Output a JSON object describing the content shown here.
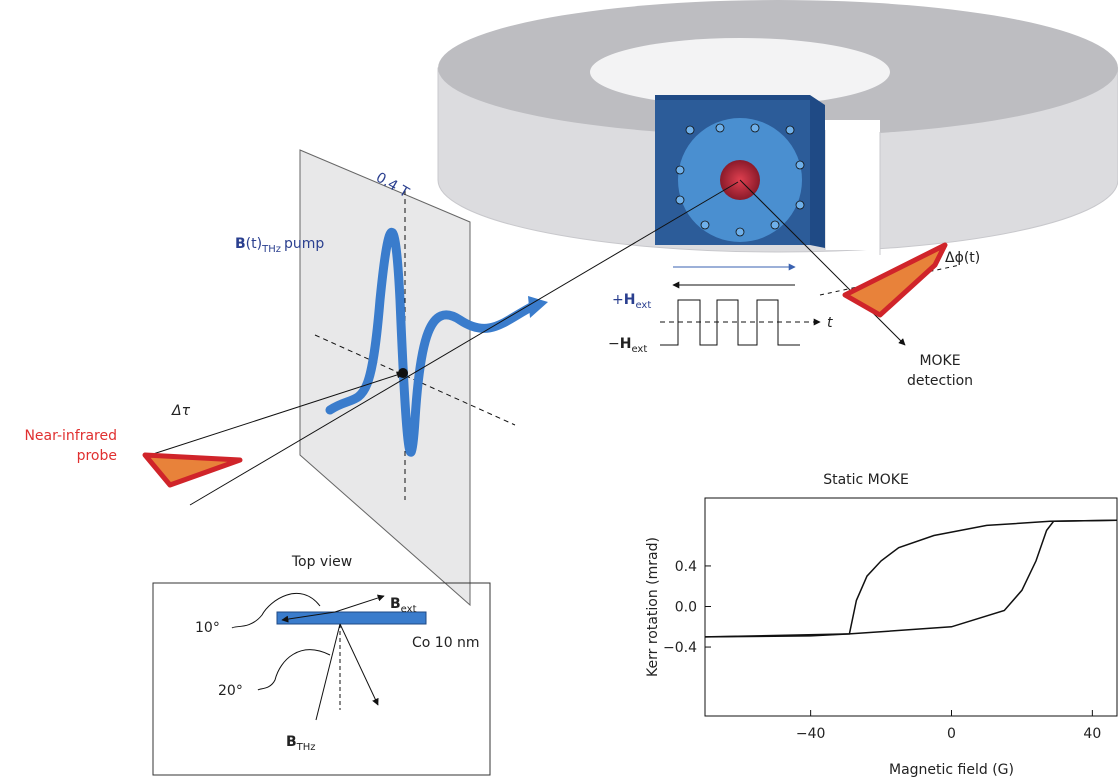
{
  "diagram": {
    "field_label": "0.4 T",
    "pump_label": {
      "symbol": "B",
      "arg": "(t)",
      "sub": "THz",
      "rest": "pump"
    },
    "delay_label": "Δτ",
    "probe_label": [
      "Near-infrared",
      "probe"
    ],
    "h_plus": {
      "sign": "+",
      "symbol": "H",
      "sub": "ext"
    },
    "h_minus": {
      "sign": "−",
      "symbol": "H",
      "sub": "ext"
    },
    "time_label": "t",
    "phase_label": "Δϕ(t)",
    "detection_label": [
      "MOKE",
      "detection"
    ]
  },
  "top_view": {
    "title": "Top view",
    "b_ext": {
      "symbol": "B",
      "sub": "ext"
    },
    "angle_1": "10°",
    "layer": "Co 10 nm",
    "angle_2": "20°",
    "b_thz": {
      "symbol": "B",
      "sub": "THz"
    }
  },
  "chart_data": {
    "type": "line",
    "title": "Static MOKE",
    "x_label": "Magnetic field (G)",
    "y_label": "Kerr rotation (mrad)",
    "xlim": [
      -70,
      47
    ],
    "ylim": [
      -1.08,
      1.07
    ],
    "xticks": [
      {
        "value": -40,
        "label": "−40"
      },
      0,
      40
    ],
    "yticks": [
      {
        "value": -0.4,
        "label": "−0.4"
      },
      {
        "value": 0,
        "label": "0.0"
      },
      0.4
    ],
    "series": [
      {
        "color": "#111111",
        "x": [
          -70,
          -40,
          -29,
          -27,
          -24,
          -20,
          -15,
          -5,
          10,
          28,
          47
        ],
        "values": [
          -0.3,
          -0.29,
          -0.27,
          0.06,
          0.3,
          0.45,
          0.58,
          0.7,
          0.8,
          0.84,
          0.85
        ]
      },
      {
        "color": "#111111",
        "x": [
          -70,
          -29,
          0,
          15,
          20,
          24,
          27,
          29,
          47
        ],
        "values": [
          -0.3,
          -0.27,
          -0.2,
          -0.04,
          0.16,
          0.45,
          0.75,
          0.84,
          0.85
        ]
      }
    ]
  }
}
